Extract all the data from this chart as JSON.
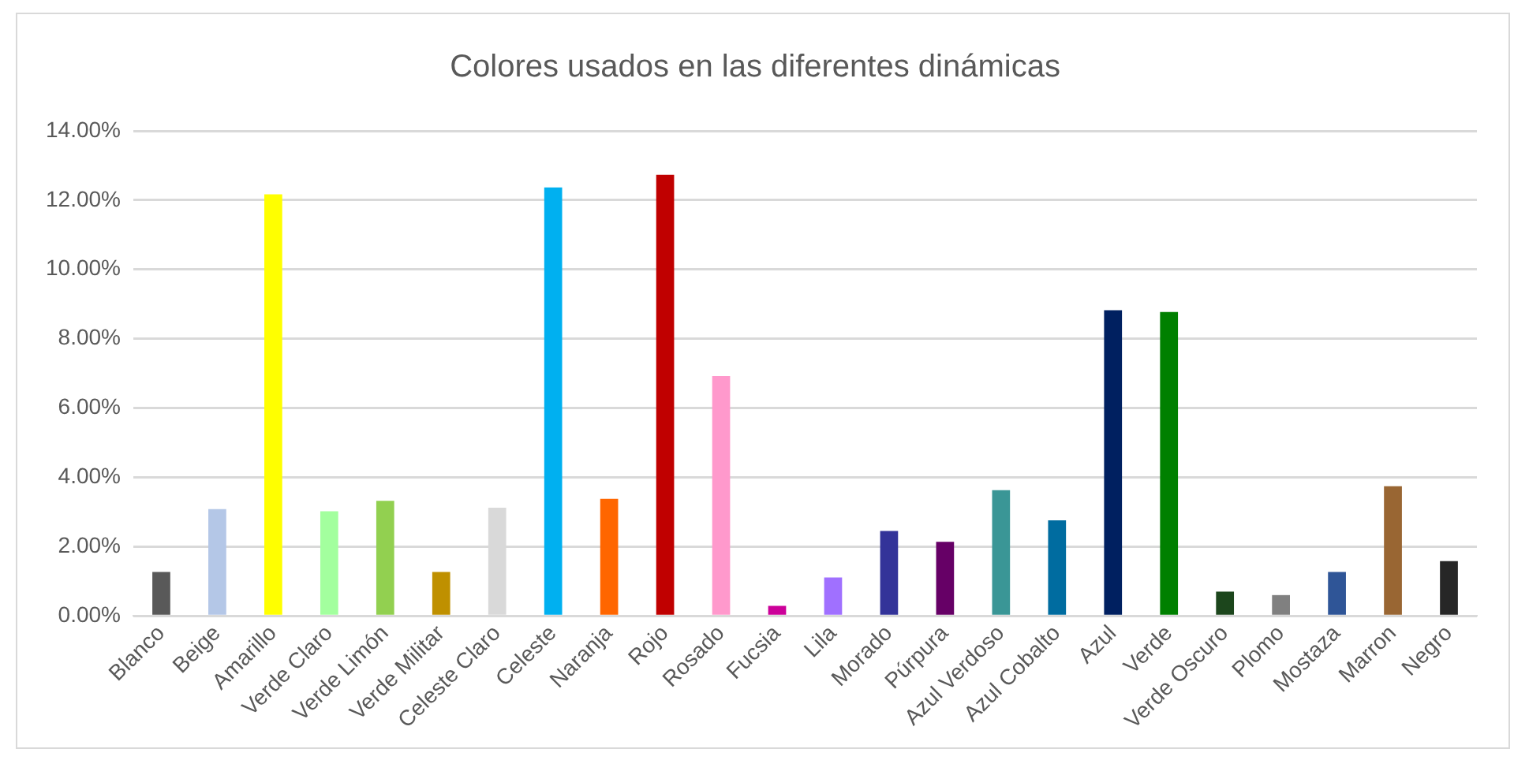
{
  "chart_data": {
    "type": "bar",
    "title": "Colores usados en las diferentes dinámicas",
    "categories": [
      "Blanco",
      "Beige",
      "Amarillo",
      "Verde Claro",
      "Verde Limón",
      "Verde Militar",
      "Celeste Claro",
      "Celeste",
      "Naranja",
      "Rojo",
      "Rosado",
      "Fucsia",
      "Lila",
      "Morado",
      "Púrpura",
      "Azul Verdoso",
      "Azul Cobalto",
      "Azul",
      "Verde",
      "Verde Oscuro",
      "Plomo",
      "Mostaza",
      "Marron",
      "Negro"
    ],
    "values": [
      1.27,
      3.08,
      12.17,
      3.02,
      3.32,
      1.27,
      3.12,
      12.37,
      3.38,
      12.73,
      6.92,
      0.29,
      1.11,
      2.45,
      2.14,
      3.63,
      2.76,
      8.82,
      8.77,
      0.7,
      0.6,
      1.27,
      3.74,
      1.58
    ],
    "colors": [
      "#595959",
      "#b4c7e7",
      "#ffff00",
      "#a3ff9e",
      "#92d050",
      "#bf9000",
      "#d9d9d9",
      "#00b0f0",
      "#ff6600",
      "#c00000",
      "#ff99cc",
      "#cc0099",
      "#a070ff",
      "#333399",
      "#660066",
      "#3a9696",
      "#006ca0",
      "#002060",
      "#008000",
      "#1c461c",
      "#808080",
      "#2f5597",
      "#996633",
      "#262626"
    ],
    "ylim": [
      0,
      14
    ],
    "yticks": [
      {
        "value": 0,
        "label": "0.00%"
      },
      {
        "value": 2,
        "label": "2.00%"
      },
      {
        "value": 4,
        "label": "4.00%"
      },
      {
        "value": 6,
        "label": "6.00%"
      },
      {
        "value": 8,
        "label": "8.00%"
      },
      {
        "value": 10,
        "label": "10.00%"
      },
      {
        "value": 12,
        "label": "12.00%"
      },
      {
        "value": 14,
        "label": "14.00%"
      }
    ],
    "grid": "y",
    "legend": false
  }
}
